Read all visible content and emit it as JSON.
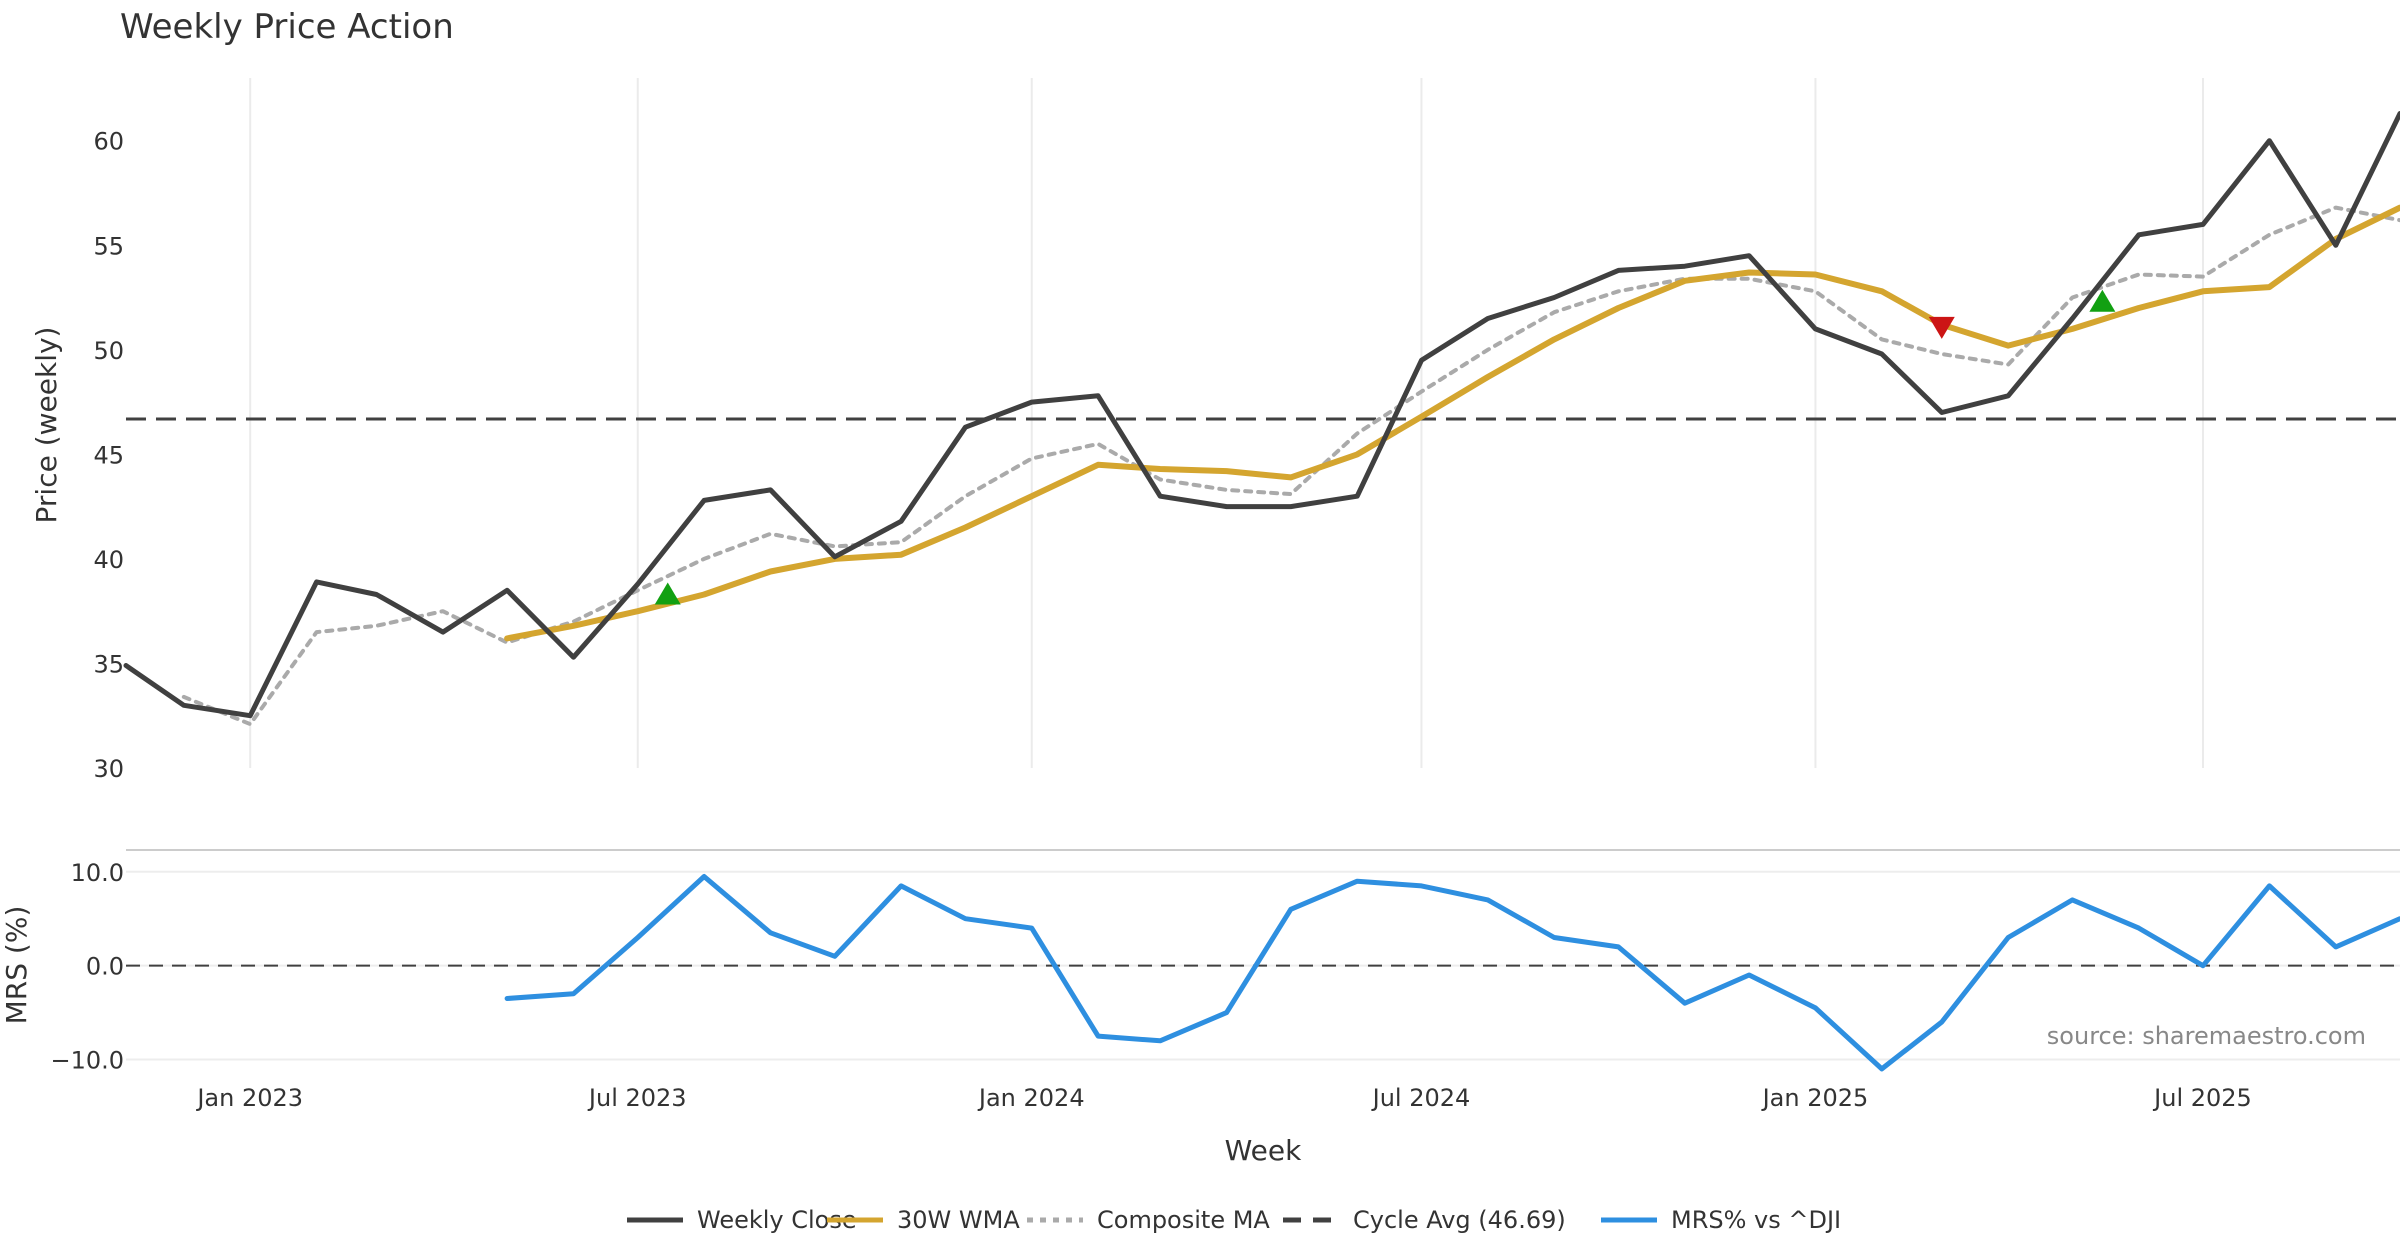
{
  "chart_data": {
    "type": "line",
    "title": "Weekly Price Action",
    "xlabel": "Week",
    "x_ticks": [
      "Jan 2023",
      "Jul 2023",
      "Jan 2024",
      "Jul 2024",
      "Jan 2025",
      "Jul 2025"
    ],
    "x_range": [
      "2022-11-04",
      "2025-10-01"
    ],
    "source": "source: sharemaestro.com",
    "grid": "vertical",
    "legend_position": "bottom-center",
    "price_panel": {
      "ylabel": "Price (weekly)",
      "ylim": [
        30,
        63
      ],
      "y_ticks": [
        "30",
        "35",
        "40",
        "45",
        "50",
        "55",
        "60"
      ],
      "cycle_avg": 46.69,
      "series": [
        {
          "name": "Weekly Close",
          "color": "#404040",
          "style": "solid",
          "x": [
            "2022-11-04",
            "2022-12-01",
            "2023-01-01",
            "2023-02-01",
            "2023-03-01",
            "2023-04-01",
            "2023-05-01",
            "2023-06-01",
            "2023-07-01",
            "2023-08-01",
            "2023-09-01",
            "2023-10-01",
            "2023-11-01",
            "2023-12-01",
            "2024-01-01",
            "2024-02-01",
            "2024-03-01",
            "2024-04-01",
            "2024-05-01",
            "2024-06-01",
            "2024-07-01",
            "2024-08-01",
            "2024-09-01",
            "2024-10-01",
            "2024-11-01",
            "2024-12-01",
            "2025-01-01",
            "2025-02-01",
            "2025-03-01",
            "2025-04-01",
            "2025-05-01",
            "2025-06-01",
            "2025-07-01",
            "2025-08-01",
            "2025-09-01",
            "2025-10-01"
          ],
          "values": [
            34.9,
            33.0,
            32.5,
            38.9,
            38.3,
            36.5,
            38.5,
            35.3,
            38.8,
            42.8,
            43.3,
            40.1,
            41.8,
            46.3,
            47.5,
            47.8,
            43.0,
            42.5,
            42.5,
            43.0,
            49.5,
            51.5,
            52.5,
            53.8,
            54.0,
            54.5,
            51.0,
            49.8,
            47.0,
            47.8,
            51.5,
            55.5,
            56.0,
            60.0,
            55.0,
            61.3
          ]
        },
        {
          "name": "30W WMA",
          "color": "#D4A52F",
          "style": "solid",
          "x": [
            "2023-05-01",
            "2023-06-01",
            "2023-07-01",
            "2023-08-01",
            "2023-09-01",
            "2023-10-01",
            "2023-11-01",
            "2023-12-01",
            "2024-01-01",
            "2024-02-01",
            "2024-03-01",
            "2024-04-01",
            "2024-05-01",
            "2024-06-01",
            "2024-07-01",
            "2024-08-01",
            "2024-09-01",
            "2024-10-01",
            "2024-11-01",
            "2024-12-01",
            "2025-01-01",
            "2025-02-01",
            "2025-03-01",
            "2025-04-01",
            "2025-05-01",
            "2025-06-01",
            "2025-07-01",
            "2025-08-01",
            "2025-09-01",
            "2025-10-01"
          ],
          "values": [
            36.2,
            36.8,
            37.5,
            38.3,
            39.4,
            40.0,
            40.2,
            41.5,
            43.0,
            44.5,
            44.3,
            44.2,
            43.9,
            45.0,
            46.8,
            48.7,
            50.5,
            52.0,
            53.3,
            53.7,
            53.6,
            52.8,
            51.2,
            50.2,
            51.0,
            52.0,
            52.8,
            53.0,
            55.3,
            56.8
          ]
        },
        {
          "name": "Composite MA",
          "color": "#AAAAAA",
          "style": "dotted",
          "x": [
            "2022-12-01",
            "2023-01-01",
            "2023-02-01",
            "2023-03-01",
            "2023-04-01",
            "2023-05-01",
            "2023-06-01",
            "2023-07-01",
            "2023-08-01",
            "2023-09-01",
            "2023-10-01",
            "2023-11-01",
            "2023-12-01",
            "2024-01-01",
            "2024-02-01",
            "2024-03-01",
            "2024-04-01",
            "2024-05-01",
            "2024-06-01",
            "2024-07-01",
            "2024-08-01",
            "2024-09-01",
            "2024-10-01",
            "2024-11-01",
            "2024-12-01",
            "2025-01-01",
            "2025-02-01",
            "2025-03-01",
            "2025-04-01",
            "2025-05-01",
            "2025-06-01",
            "2025-07-01",
            "2025-08-01",
            "2025-09-01",
            "2025-10-01"
          ],
          "values": [
            33.4,
            32.1,
            36.5,
            36.8,
            37.5,
            36.0,
            37.0,
            38.5,
            40.0,
            41.2,
            40.6,
            40.8,
            43.0,
            44.8,
            45.5,
            43.8,
            43.3,
            43.1,
            46.0,
            48.0,
            50.0,
            51.8,
            52.8,
            53.4,
            53.4,
            52.8,
            50.5,
            49.8,
            49.3,
            52.5,
            53.6,
            53.5,
            55.5,
            56.8,
            56.2
          ]
        }
      ],
      "markers": [
        {
          "type": "buy",
          "x": "2023-07-15",
          "y": 38.3,
          "color": "#12A012"
        },
        {
          "type": "sell",
          "x": "2025-03-01",
          "y": 51.1,
          "color": "#CC1515"
        },
        {
          "type": "buy",
          "x": "2025-05-15",
          "y": 52.3,
          "color": "#12A012"
        }
      ]
    },
    "mrs_panel": {
      "ylabel": "MRS (%)",
      "ylim": [
        -12.5,
        12.0
      ],
      "y_ticks": [
        "10.0",
        "0.0",
        "−10.0"
      ],
      "series": [
        {
          "name": "MRS% vs ^DJI",
          "color": "#2E8FE0",
          "style": "solid",
          "x": [
            "2023-05-01",
            "2023-06-01",
            "2023-07-01",
            "2023-08-01",
            "2023-09-01",
            "2023-10-01",
            "2023-11-01",
            "2023-12-01",
            "2024-01-01",
            "2024-02-01",
            "2024-03-01",
            "2024-04-01",
            "2024-05-01",
            "2024-06-01",
            "2024-07-01",
            "2024-08-01",
            "2024-09-01",
            "2024-10-01",
            "2024-11-01",
            "2024-12-01",
            "2025-01-01",
            "2025-02-01",
            "2025-03-01",
            "2025-04-01",
            "2025-05-01",
            "2025-06-01",
            "2025-07-01",
            "2025-08-01",
            "2025-09-01",
            "2025-10-01"
          ],
          "values": [
            -3.5,
            -3.0,
            3.0,
            9.5,
            3.5,
            1.0,
            8.5,
            5.0,
            4.0,
            -7.5,
            -8.0,
            -5.0,
            6.0,
            9.0,
            8.5,
            7.0,
            3.0,
            2.0,
            -4.0,
            -1.0,
            -4.5,
            -11.0,
            -6.0,
            3.0,
            7.0,
            4.0,
            0.0,
            8.5,
            2.0,
            5.0
          ]
        }
      ]
    }
  },
  "legend": [
    {
      "label": "Weekly Close",
      "color": "#404040",
      "style": "solid"
    },
    {
      "label": "30W WMA",
      "color": "#D4A52F",
      "style": "solid"
    },
    {
      "label": "Composite MA",
      "color": "#AAAAAA",
      "style": "dotted"
    },
    {
      "label": "Cycle Avg (46.69)",
      "color": "#404040",
      "style": "dashed"
    },
    {
      "label": "MRS% vs ^DJI",
      "color": "#2E8FE0",
      "style": "solid"
    }
  ]
}
